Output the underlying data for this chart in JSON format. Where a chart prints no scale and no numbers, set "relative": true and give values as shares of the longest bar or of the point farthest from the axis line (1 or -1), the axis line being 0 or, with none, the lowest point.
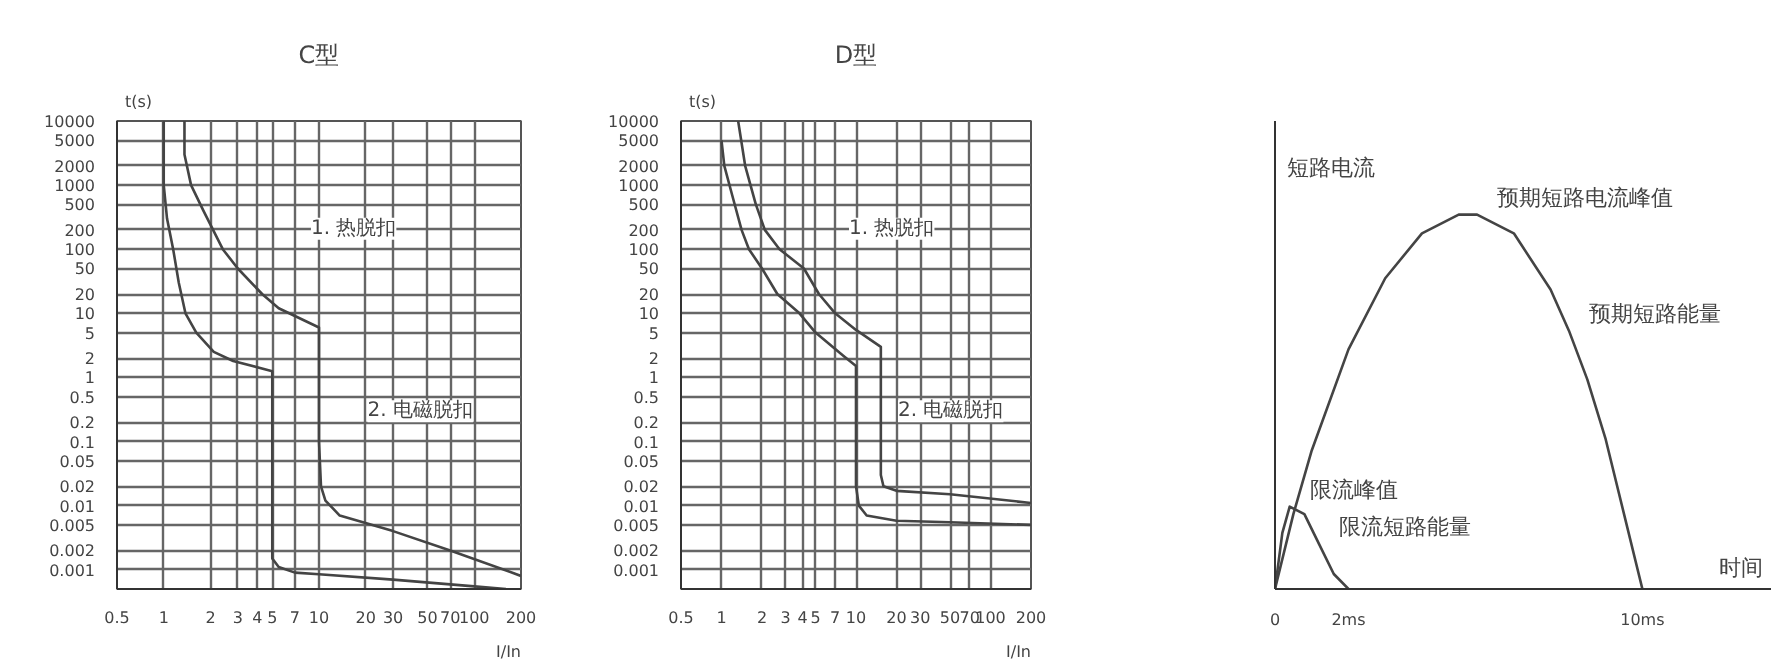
{
  "chart_data": [
    {
      "type": "line",
      "title": "C型",
      "xlabel": "I/In",
      "ylabel": "t(s)",
      "log": "xy",
      "grid": true,
      "xlim": [
        0.5,
        200
      ],
      "ylim": [
        0.0005,
        10000
      ],
      "xticks": [
        0.5,
        1,
        2,
        3,
        4,
        5,
        7,
        10,
        20,
        30,
        50,
        70,
        100,
        200
      ],
      "yticks": [
        0.001,
        0.002,
        0.005,
        0.01,
        0.02,
        0.05,
        0.1,
        0.2,
        0.5,
        1,
        2,
        5,
        10,
        20,
        50,
        100,
        200,
        500,
        1000,
        2000,
        5000,
        10000
      ],
      "series": [
        {
          "color": "#444444",
          "x": [
            1,
            1,
            1.05,
            1.15,
            1.25,
            1.38,
            1.62,
            2.1,
            2.8,
            5,
            5,
            5.5,
            7,
            10,
            30,
            100,
            160
          ],
          "values": [
            10000,
            1000,
            300,
            100,
            30,
            10,
            5,
            2.5,
            1.8,
            1.25,
            0.0015,
            0.0011,
            0.0009,
            0.00085,
            0.0007,
            0.00055,
            0.0005
          ]
        },
        {
          "color": "#444444",
          "x": [
            1.36,
            1.36,
            1.5,
            1.8,
            2.4,
            3,
            4.3,
            5.5,
            10,
            10,
            10.3,
            11,
            13.6,
            30,
            70,
            200
          ],
          "values": [
            10000,
            3000,
            1000,
            400,
            100,
            50,
            20,
            12,
            6,
            0.1,
            0.02,
            0.012,
            0.007,
            0.004,
            0.002,
            0.0008
          ]
        }
      ],
      "annotations": [
        "1. 热脱扣",
        "2. 电磁脱扣"
      ]
    },
    {
      "type": "line",
      "title": "D型",
      "xlabel": "I/In",
      "ylabel": "t(s)",
      "log": "xy",
      "grid": true,
      "xlim": [
        0.5,
        200
      ],
      "ylim": [
        0.0005,
        10000
      ],
      "xticks": [
        0.5,
        1,
        2,
        3,
        4,
        5,
        7,
        10,
        20,
        30,
        50,
        70,
        100,
        200
      ],
      "yticks": [
        0.001,
        0.002,
        0.005,
        0.01,
        0.02,
        0.05,
        0.1,
        0.2,
        0.5,
        1,
        2,
        5,
        10,
        20,
        50,
        100,
        200,
        500,
        1000,
        2000,
        5000,
        10000
      ],
      "series": [
        {
          "color": "#444444",
          "x": [
            1,
            1.05,
            1.2,
            1.41,
            1.6,
            2,
            2.6,
            3.8,
            5,
            8,
            10,
            10,
            10.5,
            12,
            20,
            50,
            200
          ],
          "values": [
            5000,
            2000,
            700,
            200,
            100,
            50,
            20,
            10,
            5,
            2.2,
            1.5,
            0.02,
            0.01,
            0.007,
            0.0058,
            0.0055,
            0.005
          ]
        },
        {
          "color": "#444444",
          "x": [
            1.33,
            1.5,
            1.8,
            2.1,
            2.7,
            4.1,
            5.3,
            7,
            10,
            15.3,
            15.3,
            16,
            20,
            50,
            200
          ],
          "values": [
            10000,
            2000,
            500,
            200,
            100,
            50,
            20,
            10,
            5.5,
            3,
            0.03,
            0.02,
            0.017,
            0.015,
            0.011
          ]
        }
      ],
      "annotations": [
        "1. 热脱扣",
        "2. 电磁脱扣"
      ]
    },
    {
      "type": "line",
      "relative": true,
      "xlabel": "时间",
      "ylabel": "短路电流",
      "grid": false,
      "xlim": [
        0,
        13.5
      ],
      "xticks": [
        {
          "value": 0,
          "label": "0"
        },
        {
          "value": 2,
          "label": "2ms"
        },
        {
          "value": 10,
          "label": "10ms"
        }
      ],
      "series": [
        {
          "color": "#444444",
          "x": [
            0,
            0.5,
            1,
            2,
            3,
            4,
            5,
            5.5,
            6.5,
            7.5,
            8,
            8.5,
            9,
            9.5,
            10
          ],
          "values": [
            0,
            0.2,
            0.37,
            0.64,
            0.83,
            0.95,
            1.0,
            1.0,
            0.95,
            0.8,
            0.69,
            0.56,
            0.4,
            0.2,
            0
          ]
        },
        {
          "color": "#444444",
          "x": [
            0,
            0.2,
            0.4,
            0.8,
            1.2,
            1.6,
            2
          ],
          "values": [
            0,
            0.15,
            0.22,
            0.2,
            0.12,
            0.04,
            0
          ]
        }
      ],
      "annotations": [
        {
          "text": "预期短路电流峰值",
          "x": 5.5,
          "y": 1.0
        },
        {
          "text": "预期短路能量",
          "x": 8,
          "y": 0.69
        },
        {
          "text": "限流峰值",
          "x": 0.4,
          "y": 0.22
        },
        {
          "text": "限流短路能量",
          "x": 1.2,
          "y": 0.12
        }
      ]
    }
  ]
}
